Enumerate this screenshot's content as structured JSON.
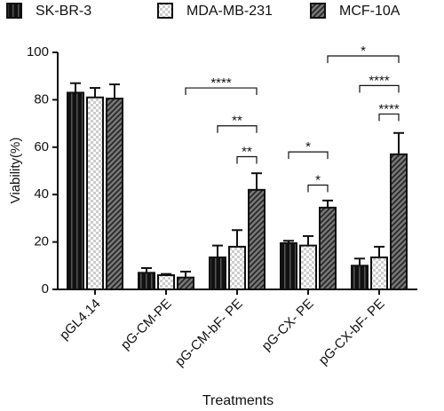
{
  "chart_data": {
    "type": "bar",
    "categories": [
      "pGL4.14",
      "pG-CM-PE",
      "pG-CM-bF- PE",
      "pG-CX- PE",
      "pG-CX-bF- PE"
    ],
    "series": [
      {
        "name": "SK-BR-3",
        "color": "#111111",
        "values": [
          83,
          7,
          13.5,
          19.5,
          10
        ],
        "errors": [
          4,
          2,
          5,
          1,
          3
        ]
      },
      {
        "name": "MDA-MB-231",
        "color": "#cccccc",
        "values": [
          81,
          6,
          18,
          18.5,
          13.5
        ],
        "errors": [
          4,
          0.5,
          7,
          4,
          4.5
        ]
      },
      {
        "name": "MCF-10A",
        "color": "#777777",
        "values": [
          80.5,
          5,
          42,
          34.5,
          57
        ],
        "errors": [
          6,
          2.5,
          7,
          3,
          9
        ]
      }
    ],
    "ylim": [
      0,
      100
    ],
    "yticks": [
      0,
      20,
      40,
      60,
      80,
      100
    ],
    "y_label": "Viability(%)",
    "x_label": "Treatments",
    "annotations": [
      "****",
      "**",
      "**",
      "*",
      "*",
      "*",
      "****",
      "****"
    ]
  }
}
